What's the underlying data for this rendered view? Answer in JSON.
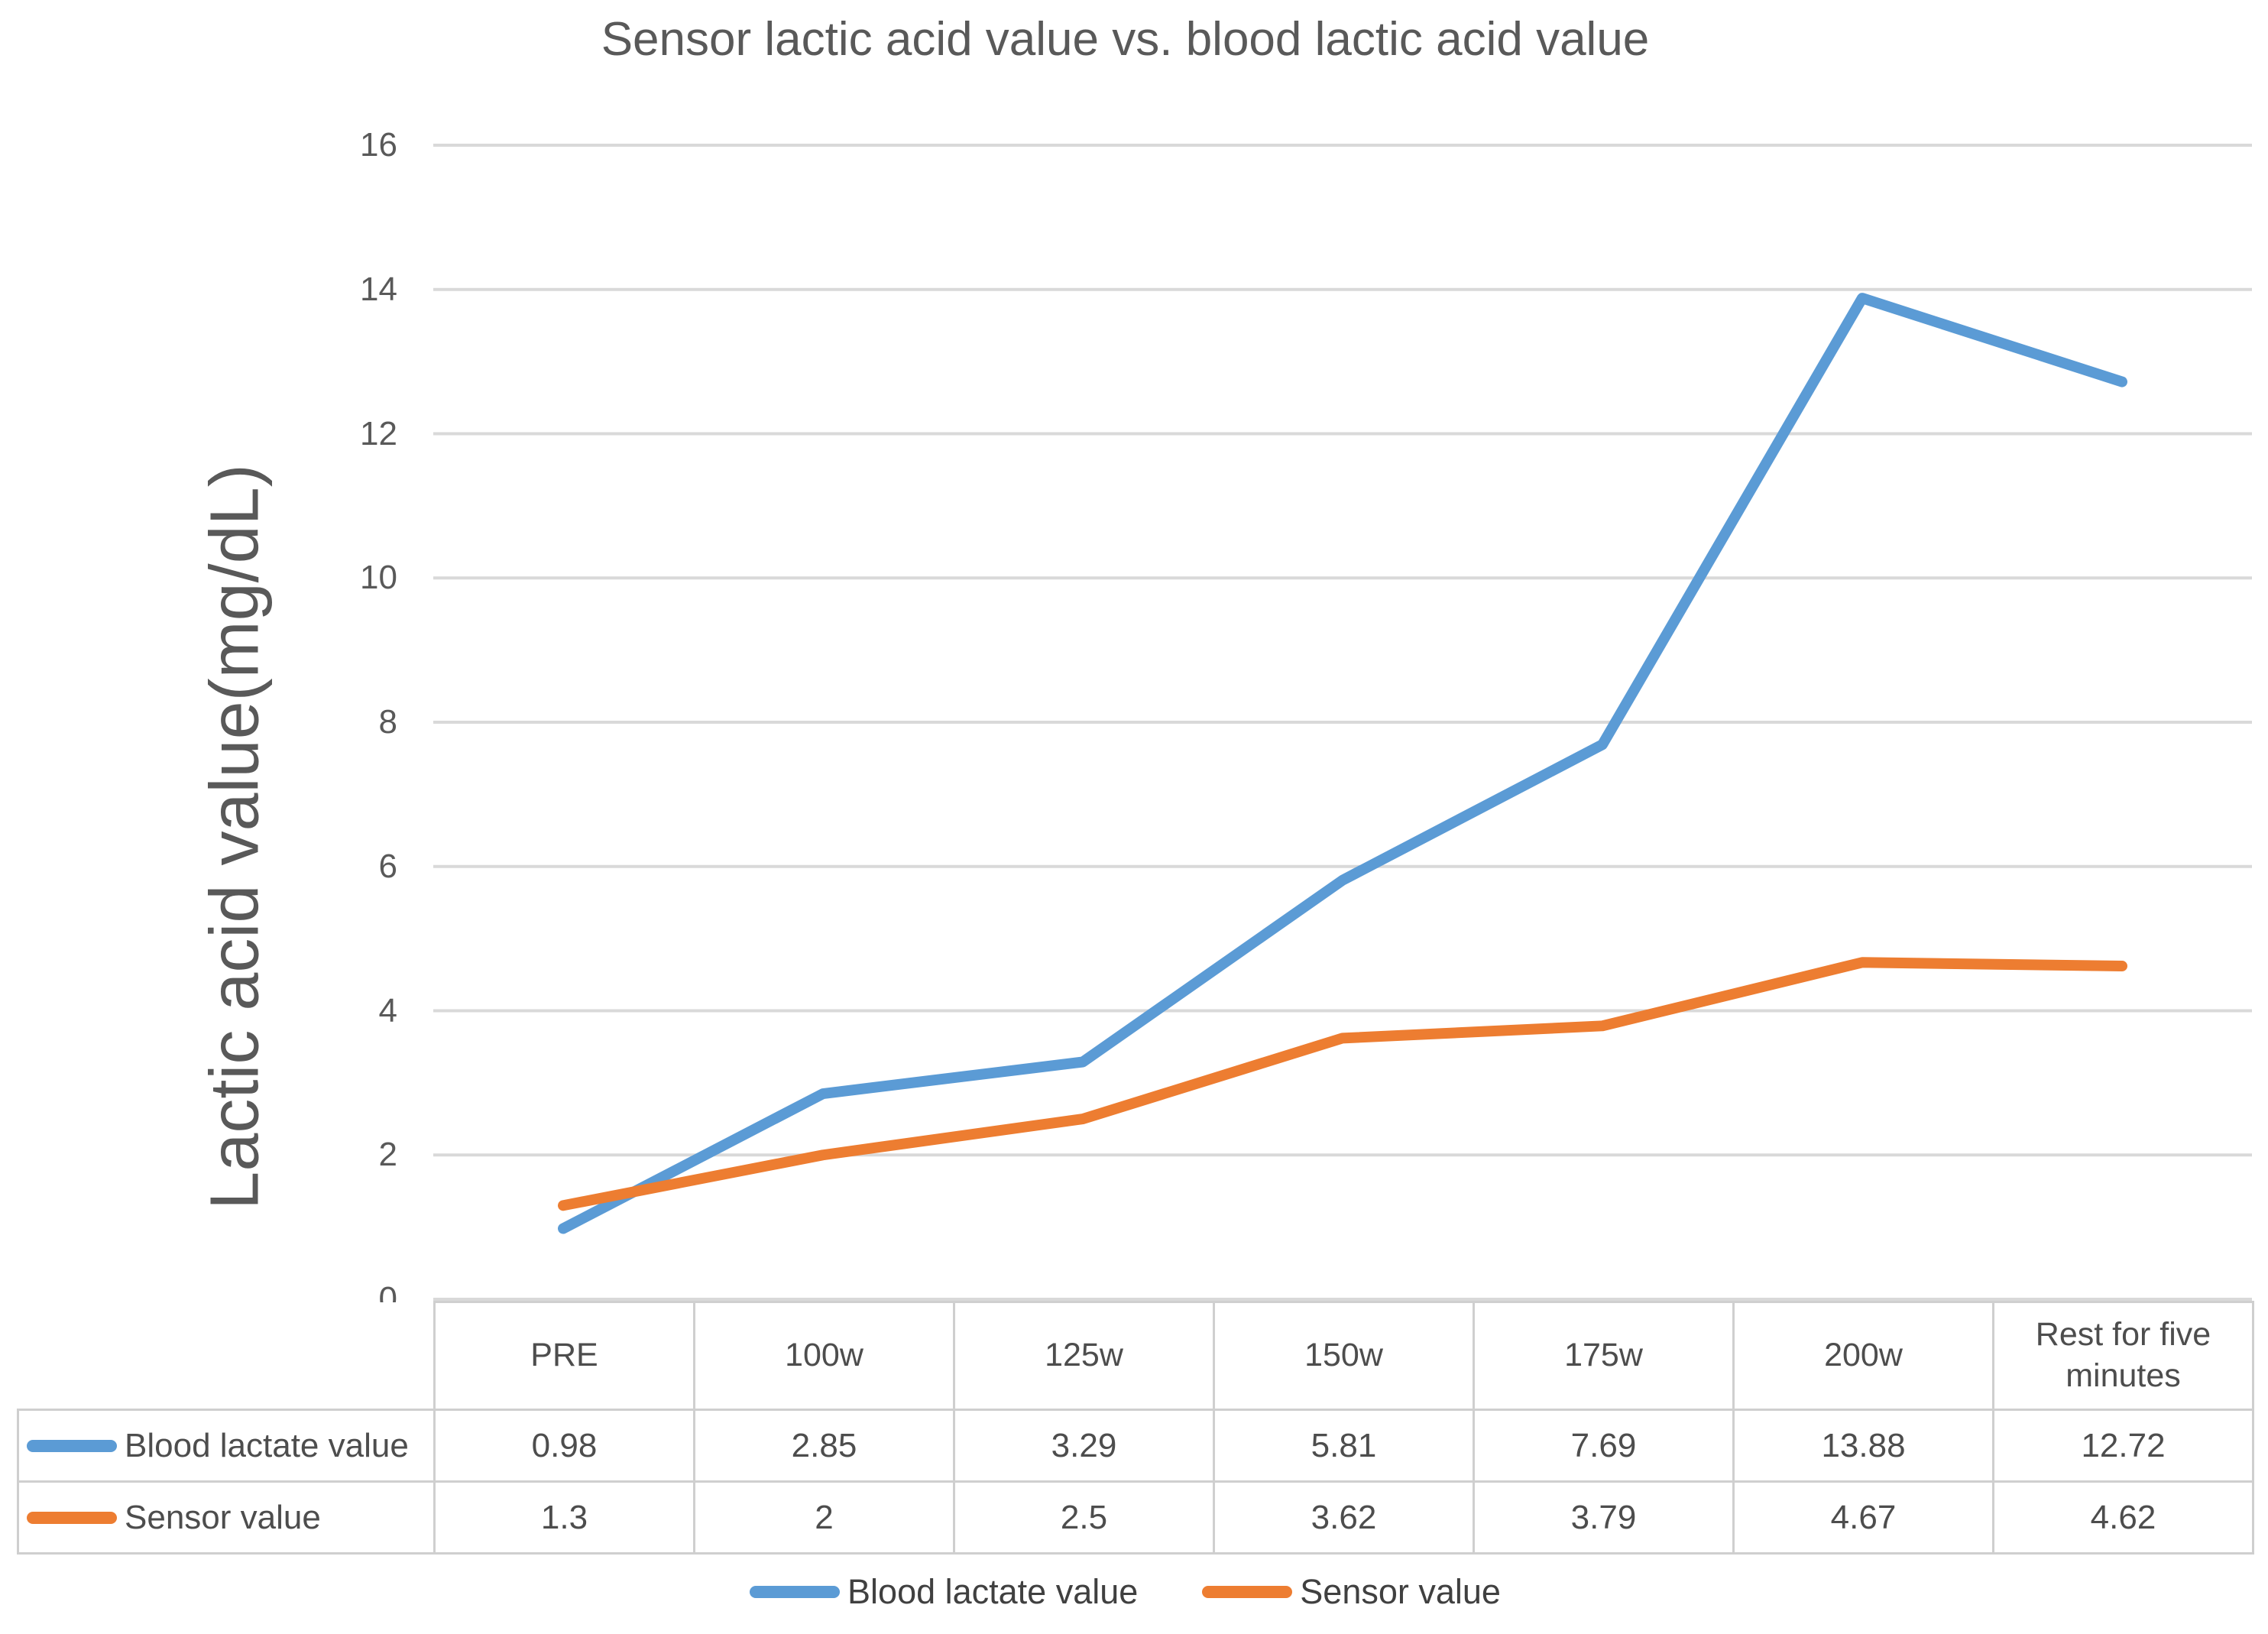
{
  "title": "Sensor lactic acid value vs. blood lactic acid value",
  "colors": {
    "blood_lactate": "#5B9BD5",
    "sensor": "#ED7D31",
    "text": "#595959",
    "gridline": "#D9D9D9",
    "table_border": "#CFCFCF"
  },
  "chart_data": {
    "type": "line",
    "title": "Sensor lactic acid value vs. blood lactic acid value",
    "xlabel": "",
    "ylabel": "Lactic acid value(mg/dL)",
    "categories": [
      "PRE",
      "100w",
      "125w",
      "150w",
      "175w",
      "200w",
      "Rest for five minutes"
    ],
    "series": [
      {
        "name": "Blood lactate value",
        "color": "#5B9BD5",
        "values": [
          0.98,
          2.85,
          3.29,
          5.81,
          7.69,
          13.88,
          12.72
        ]
      },
      {
        "name": "Sensor value",
        "color": "#ED7D31",
        "values": [
          1.3,
          2,
          2.5,
          3.62,
          3.79,
          4.67,
          4.62
        ]
      }
    ],
    "ylim": [
      0,
      16
    ],
    "yticks": [
      16,
      14,
      12,
      10,
      8,
      6,
      4,
      2,
      0
    ],
    "grid": true,
    "legend_position": "bottom",
    "data_table_shown": true
  },
  "legend": {
    "items": [
      {
        "label": "Blood lactate value",
        "color": "#5B9BD5"
      },
      {
        "label": "Sensor value",
        "color": "#ED7D31"
      }
    ]
  }
}
